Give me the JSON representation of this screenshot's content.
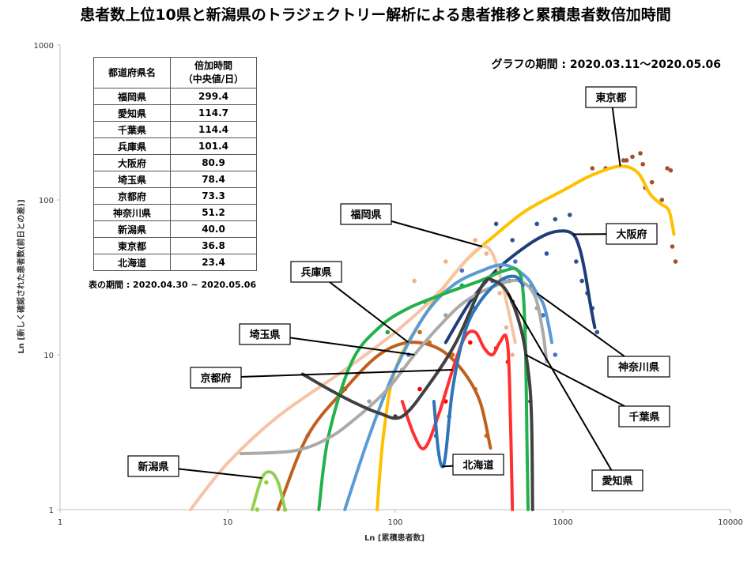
{
  "chart_data": {
    "type": "line",
    "title": "患者数上位10県と新潟県のトラジェクトリー解析による患者推移と累積患者数倍加時間",
    "period_note": "グラフの期間 : 2020.03.11～2020.05.06",
    "xlabel": "Ln [累積患者数]",
    "ylabel": "Ln [新しく確認された患者数(前日との差)]",
    "x_scale": "log",
    "y_scale": "log",
    "xlim": [
      1,
      10000
    ],
    "ylim": [
      1,
      1000
    ],
    "x_ticks": [
      "1",
      "10",
      "100",
      "1000",
      "10000"
    ],
    "y_ticks": [
      "1",
      "10",
      "100",
      "1000"
    ],
    "grid": false,
    "series": [
      {
        "name": "東京都",
        "color": "#FFC000",
        "dot_color": "#A0522D",
        "line": [
          [
            78,
            1
          ],
          [
            85,
            3
          ],
          [
            100,
            8
          ],
          [
            150,
            18
          ],
          [
            250,
            38
          ],
          [
            400,
            60
          ],
          [
            600,
            85
          ],
          [
            1000,
            115
          ],
          [
            1500,
            145
          ],
          [
            2200,
            165
          ],
          [
            2800,
            150
          ],
          [
            3300,
            110
          ],
          [
            3800,
            95
          ],
          [
            4300,
            85
          ],
          [
            4600,
            60
          ]
        ],
        "points": [
          [
            2600,
            190
          ],
          [
            2900,
            200
          ],
          [
            1800,
            160
          ],
          [
            2300,
            180
          ],
          [
            3100,
            120
          ],
          [
            3400,
            130
          ],
          [
            3900,
            100
          ],
          [
            4200,
            160
          ],
          [
            4400,
            155
          ],
          [
            4500,
            50
          ],
          [
            4700,
            40
          ],
          [
            3000,
            170
          ],
          [
            1500,
            160
          ],
          [
            2400,
            180
          ]
        ]
      },
      {
        "name": "大阪府",
        "color": "#1F3E77",
        "dot_color": "#2E5597",
        "line": [
          [
            200,
            12
          ],
          [
            280,
            22
          ],
          [
            400,
            35
          ],
          [
            600,
            50
          ],
          [
            800,
            60
          ],
          [
            1000,
            63
          ],
          [
            1150,
            60
          ],
          [
            1250,
            50
          ],
          [
            1350,
            35
          ],
          [
            1450,
            22
          ],
          [
            1550,
            15
          ]
        ],
        "points": [
          [
            400,
            70
          ],
          [
            500,
            55
          ],
          [
            700,
            70
          ],
          [
            900,
            75
          ],
          [
            1200,
            40
          ],
          [
            1300,
            30
          ],
          [
            1400,
            25
          ],
          [
            1500,
            20
          ],
          [
            1600,
            14
          ],
          [
            1100,
            80
          ],
          [
            800,
            45
          ]
        ]
      },
      {
        "name": "福岡県",
        "color": "#F5C4A6",
        "dot_color": "#F4B183",
        "line": [
          [
            6,
            1
          ],
          [
            10,
            2
          ],
          [
            20,
            4
          ],
          [
            50,
            8
          ],
          [
            100,
            14
          ],
          [
            180,
            25
          ],
          [
            260,
            40
          ],
          [
            330,
            50
          ],
          [
            380,
            45
          ],
          [
            430,
            30
          ],
          [
            480,
            18
          ],
          [
            520,
            12
          ]
        ],
        "points": [
          [
            130,
            30
          ],
          [
            200,
            40
          ],
          [
            300,
            55
          ],
          [
            350,
            45
          ],
          [
            420,
            25
          ],
          [
            460,
            15
          ],
          [
            500,
            10
          ]
        ]
      },
      {
        "name": "兵庫県",
        "color": "#C0601E",
        "dot_color": "#C5701E",
        "line": [
          [
            20,
            1
          ],
          [
            30,
            3
          ],
          [
            50,
            6
          ],
          [
            80,
            10
          ],
          [
            120,
            12
          ],
          [
            180,
            11
          ],
          [
            250,
            8
          ],
          [
            320,
            5
          ],
          [
            370,
            2.5
          ]
        ],
        "points": [
          [
            140,
            14
          ],
          [
            160,
            12
          ],
          [
            220,
            10
          ],
          [
            300,
            6
          ],
          [
            350,
            3
          ]
        ]
      },
      {
        "name": "神奈川県",
        "color": "#5B9BD5",
        "dot_color": "#4472C4",
        "line": [
          [
            50,
            1
          ],
          [
            70,
            3
          ],
          [
            100,
            8
          ],
          [
            150,
            18
          ],
          [
            220,
            28
          ],
          [
            330,
            35
          ],
          [
            450,
            38
          ],
          [
            600,
            32
          ],
          [
            700,
            25
          ],
          [
            780,
            20
          ],
          [
            860,
            12
          ]
        ],
        "points": [
          [
            120,
            10
          ],
          [
            250,
            35
          ],
          [
            380,
            30
          ],
          [
            520,
            40
          ],
          [
            650,
            28
          ],
          [
            760,
            18
          ],
          [
            900,
            10
          ]
        ]
      },
      {
        "name": "千葉県",
        "color": "#22B14C",
        "dot_color": "#22A845",
        "line": [
          [
            35,
            1
          ],
          [
            40,
            3
          ],
          [
            55,
            9
          ],
          [
            80,
            15
          ],
          [
            120,
            20
          ],
          [
            200,
            25
          ],
          [
            320,
            30
          ],
          [
            450,
            35
          ],
          [
            540,
            35
          ],
          [
            580,
            25
          ],
          [
            600,
            10
          ],
          [
            610,
            3
          ],
          [
            620,
            1
          ]
        ],
        "points": [
          [
            90,
            14
          ],
          [
            150,
            22
          ],
          [
            250,
            28
          ],
          [
            420,
            35
          ],
          [
            560,
            30
          ],
          [
            600,
            15
          ]
        ]
      },
      {
        "name": "埼玉県",
        "color": "#AAAAAA",
        "dot_color": "#A5A5A5",
        "line": [
          [
            12,
            2.3
          ],
          [
            25,
            2.4
          ],
          [
            40,
            2.9
          ],
          [
            60,
            4
          ],
          [
            90,
            6
          ],
          [
            130,
            10
          ],
          [
            180,
            15
          ],
          [
            260,
            22
          ],
          [
            400,
            28
          ],
          [
            550,
            30
          ],
          [
            680,
            24
          ],
          [
            760,
            14
          ],
          [
            800,
            9
          ]
        ],
        "points": [
          [
            30,
            3
          ],
          [
            70,
            5
          ],
          [
            110,
            8
          ],
          [
            200,
            18
          ],
          [
            450,
            30
          ],
          [
            700,
            20
          ]
        ]
      },
      {
        "name": "京都府",
        "color": "#FF3030",
        "dot_color": "#FF0000",
        "line": [
          [
            110,
            5
          ],
          [
            130,
            3
          ],
          [
            150,
            2.5
          ],
          [
            180,
            4
          ],
          [
            220,
            8
          ],
          [
            260,
            13
          ],
          [
            300,
            14
          ],
          [
            340,
            11
          ],
          [
            380,
            10
          ],
          [
            420,
            12
          ],
          [
            460,
            13
          ],
          [
            480,
            7
          ],
          [
            500,
            1
          ]
        ],
        "points": [
          [
            140,
            6
          ],
          [
            200,
            5
          ],
          [
            280,
            12
          ],
          [
            400,
            11
          ],
          [
            470,
            9
          ]
        ]
      },
      {
        "name": "新潟県",
        "color": "#92D050",
        "dot_color": "#92D050",
        "line": [
          [
            14,
            1
          ],
          [
            16,
            1.6
          ],
          [
            18,
            1.75
          ],
          [
            20,
            1.5
          ],
          [
            22,
            1
          ]
        ],
        "points": [
          [
            15,
            1
          ],
          [
            17,
            1.5
          ],
          [
            22,
            1
          ]
        ]
      },
      {
        "name": "北海道",
        "color": "#2E75B6",
        "dot_color": "#2E75B6",
        "line": [
          [
            170,
            5
          ],
          [
            180,
            2.5
          ],
          [
            190,
            1.9
          ],
          [
            200,
            2.3
          ],
          [
            220,
            6
          ],
          [
            260,
            14
          ],
          [
            320,
            22
          ],
          [
            420,
            30
          ],
          [
            520,
            32
          ],
          [
            580,
            28
          ]
        ],
        "points": [
          [
            175,
            3
          ],
          [
            210,
            4
          ],
          [
            300,
            20
          ],
          [
            480,
            30
          ]
        ]
      },
      {
        "name": "愛知県",
        "color": "#404040",
        "dot_color": "#404040",
        "line": [
          [
            28,
            7.5
          ],
          [
            40,
            6
          ],
          [
            55,
            5
          ],
          [
            80,
            4.2
          ],
          [
            110,
            4
          ],
          [
            160,
            6.5
          ],
          [
            230,
            12
          ],
          [
            330,
            28
          ],
          [
            390,
            30
          ],
          [
            470,
            25
          ],
          [
            560,
            15
          ],
          [
            620,
            8
          ],
          [
            650,
            4
          ],
          [
            660,
            1
          ]
        ],
        "points": [
          [
            50,
            6
          ],
          [
            100,
            4
          ],
          [
            300,
            24
          ],
          [
            500,
            22
          ],
          [
            640,
            5
          ]
        ]
      }
    ],
    "table": {
      "headers": [
        "都道府県名",
        "倍加時間\n（中央値/日）"
      ],
      "rows": [
        [
          "福岡県",
          "299.4"
        ],
        [
          "愛知県",
          "114.7"
        ],
        [
          "千葉県",
          "114.4"
        ],
        [
          "兵庫県",
          "101.4"
        ],
        [
          "大阪府",
          "80.9"
        ],
        [
          "埼玉県",
          "78.4"
        ],
        [
          "京都府",
          "73.3"
        ],
        [
          "神奈川県",
          "51.2"
        ],
        [
          "新潟県",
          "40.0"
        ],
        [
          "東京都",
          "36.8"
        ],
        [
          "北海道",
          "23.4"
        ]
      ],
      "caption": "表の期間 : 2020.04.30 ~ 2020.05.06"
    }
  }
}
